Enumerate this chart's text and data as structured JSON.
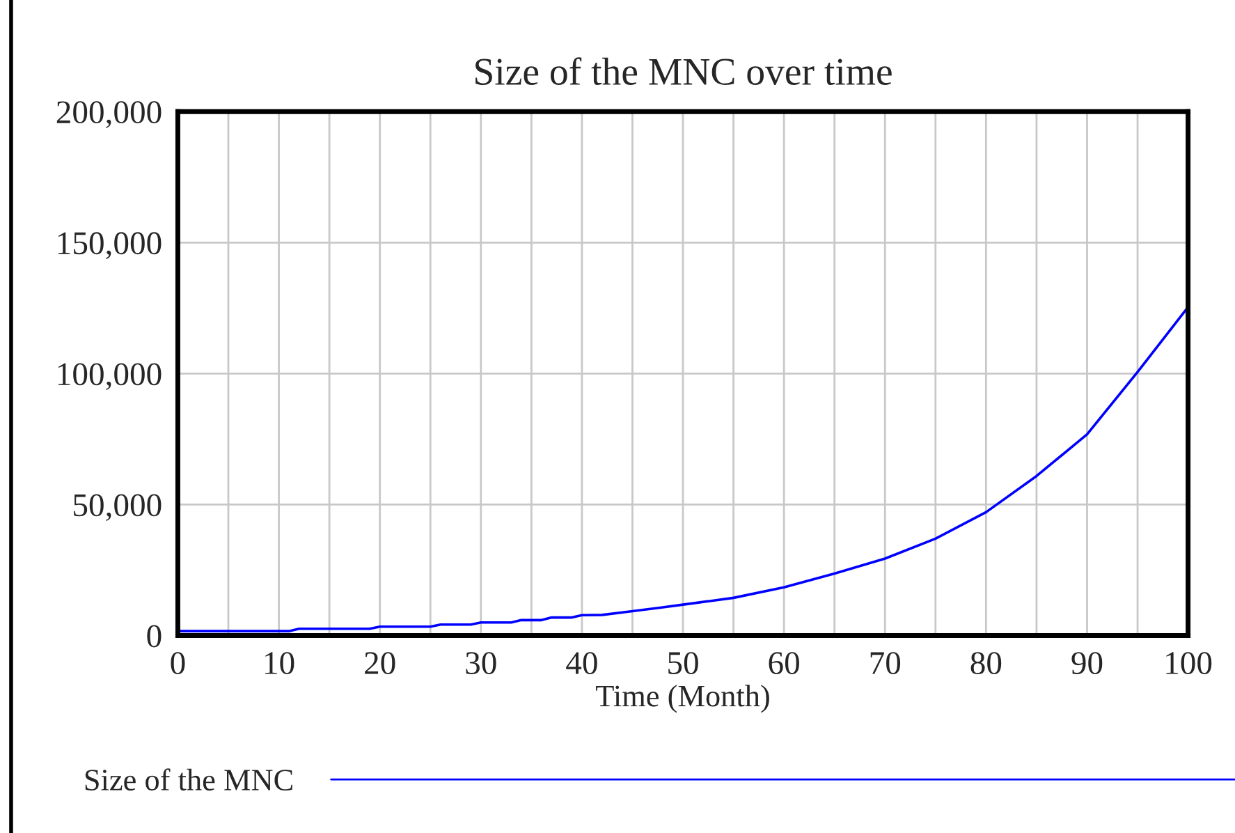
{
  "chart_data": {
    "type": "line",
    "title": "Size of the MNC over time",
    "xlabel": "Time (Month)",
    "x": [
      0,
      11,
      12,
      19,
      20,
      25,
      26,
      29,
      30,
      33,
      34,
      36,
      37,
      39,
      40,
      42,
      45,
      48,
      50,
      55,
      60,
      65,
      70,
      75,
      80,
      85,
      90,
      95,
      100
    ],
    "series": [
      {
        "name": "Size of the MNC",
        "color": "#0000ff",
        "values": [
          1700,
          1700,
          2600,
          2600,
          3400,
          3400,
          4200,
          4200,
          5000,
          5000,
          5900,
          5900,
          6900,
          6900,
          7800,
          7900,
          9300,
          10800,
          11800,
          14400,
          18400,
          23700,
          29400,
          37000,
          47100,
          60900,
          76800,
          100600,
          125400
        ]
      }
    ],
    "xlim": [
      0,
      100
    ],
    "ylim": [
      0,
      200000
    ],
    "xticks": [
      0,
      {
        "value": 5,
        "label": null
      },
      10,
      {
        "value": 15,
        "label": null
      },
      20,
      {
        "value": 25,
        "label": null
      },
      30,
      {
        "value": 35,
        "label": null
      },
      40,
      {
        "value": 45,
        "label": null
      },
      50,
      {
        "value": 55,
        "label": null
      },
      60,
      {
        "value": 65,
        "label": null
      },
      70,
      {
        "value": 75,
        "label": null
      },
      80,
      {
        "value": 85,
        "label": null
      },
      90,
      {
        "value": 95,
        "label": null
      },
      100
    ],
    "yticks": [
      {
        "value": 0,
        "label": "0"
      },
      {
        "value": 50000,
        "label": "50,000"
      },
      {
        "value": 100000,
        "label": "100,000"
      },
      {
        "value": 150000,
        "label": "150,000"
      },
      {
        "value": 200000,
        "label": "200,000"
      }
    ],
    "grid": true,
    "legend": "bottom",
    "marker": "none",
    "line_style": "solid"
  }
}
